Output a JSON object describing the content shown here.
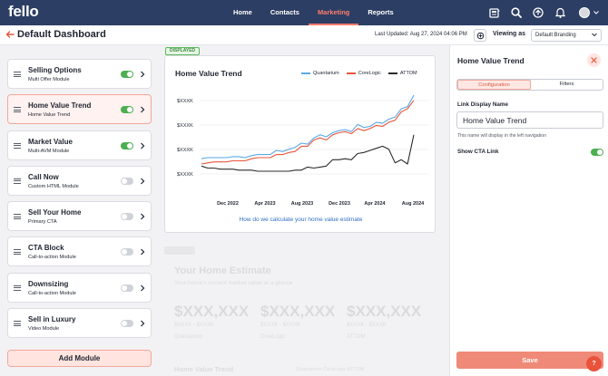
{
  "nav": {
    "logo": "fello",
    "links": [
      {
        "label": "Home",
        "active": false
      },
      {
        "label": "Contacts",
        "active": false
      },
      {
        "label": "Marketing",
        "active": true
      },
      {
        "label": "Reports",
        "active": false
      }
    ],
    "icons": [
      "newspaper-icon",
      "search-icon",
      "sync-icon",
      "bell-icon"
    ]
  },
  "header": {
    "title": "Default Dashboard",
    "last_updated": "Last Updated: Aug 27, 2024 04:06 PM",
    "viewing_label": "Viewing as",
    "branding": "Default Branding"
  },
  "modules": [
    {
      "name": "Selling Options",
      "sub": "Multi Offer Module",
      "enabled": true,
      "selected": false
    },
    {
      "name": "Home Value Trend",
      "sub": "Home Value Trend",
      "enabled": true,
      "selected": true
    },
    {
      "name": "Market Value",
      "sub": "Multi-AVM Module",
      "enabled": true,
      "selected": false
    },
    {
      "name": "Call Now",
      "sub": "Custom HTML Module",
      "enabled": false,
      "selected": false
    },
    {
      "name": "Sell Your Home",
      "sub": "Primary CTA",
      "enabled": false,
      "selected": false
    },
    {
      "name": "CTA Block",
      "sub": "Call-to-action Module",
      "enabled": false,
      "selected": false
    },
    {
      "name": "Downsizing",
      "sub": "Call-to-action Module",
      "enabled": false,
      "selected": false
    },
    {
      "name": "Sell in Luxury",
      "sub": "Video Module",
      "enabled": false,
      "selected": false
    }
  ],
  "add_module_label": "Add Module",
  "preview": {
    "displayed_tag": "DISPLAYED",
    "card_title": "Home Value Trend",
    "link_text": "How do we calculate your home value estimate"
  },
  "chart_data": {
    "type": "line",
    "title": "Home Value Trend",
    "x_ticks": [
      "Dec 2022",
      "Apr 2023",
      "Aug 2023",
      "Dec 2023",
      "Apr 2024",
      "Aug 2024"
    ],
    "y_ticks": [
      "$XXXK",
      "$XXXK",
      "$XXXK",
      "$XXXK"
    ],
    "grid": true,
    "legend_position": "top-right",
    "colors": {
      "Quantarium": "#5aa9e6",
      "CoreLogic": "#e8553c",
      "ATTOM": "#2b2b2b"
    },
    "series": [
      {
        "name": "Quantarium",
        "values": [
          0.32,
          0.33,
          0.33,
          0.33,
          0.33,
          0.34,
          0.34,
          0.33,
          0.35,
          0.36,
          0.36,
          0.36,
          0.4,
          0.39,
          0.41,
          0.43,
          0.47,
          0.46,
          0.52,
          0.55,
          0.53,
          0.57,
          0.59,
          0.6,
          0.58,
          0.65,
          0.62,
          0.63,
          0.67,
          0.66,
          0.7,
          0.72,
          0.8,
          0.82,
          0.93
        ]
      },
      {
        "name": "CoreLogic",
        "values": [
          0.27,
          0.28,
          0.29,
          0.29,
          0.29,
          0.3,
          0.3,
          0.3,
          0.32,
          0.33,
          0.33,
          0.33,
          0.36,
          0.36,
          0.38,
          0.39,
          0.44,
          0.44,
          0.5,
          0.52,
          0.5,
          0.55,
          0.57,
          0.58,
          0.56,
          0.61,
          0.59,
          0.61,
          0.64,
          0.63,
          0.67,
          0.69,
          0.77,
          0.8,
          0.88
        ]
      },
      {
        "name": "ATTOM",
        "values": [
          0.25,
          0.23,
          0.23,
          0.22,
          0.22,
          0.22,
          0.21,
          0.21,
          0.21,
          0.2,
          0.2,
          0.2,
          0.2,
          0.2,
          0.2,
          0.21,
          0.21,
          0.24,
          0.23,
          0.24,
          0.25,
          0.31,
          0.31,
          0.32,
          0.31,
          0.37,
          0.38,
          0.4,
          0.42,
          0.44,
          0.41,
          0.28,
          0.31,
          0.27,
          0.55
        ]
      }
    ]
  },
  "ghost": {
    "title": "Your Home Estimate",
    "subtitle": "Your home's current market value at a glance",
    "values": [
      {
        "value": "$XXX,XXX",
        "range": "$XXXK - $XXXK",
        "source": "Quantarium"
      },
      {
        "value": "$XXX,XXX",
        "range": "$XXXK - $XXXK",
        "source": "CoreLogic"
      },
      {
        "value": "$XXX,XXX",
        "range": "$XXXK - $XXXK",
        "source": "ATTOM"
      }
    ],
    "trend_title": "Home Value Trend",
    "legend": "Quantarium     CoreLogic     ATTOM"
  },
  "panel": {
    "title": "Home Value Trend",
    "tabs": [
      {
        "label": "Configuration",
        "active": true
      },
      {
        "label": "Filters",
        "active": false
      }
    ],
    "field_label": "Link Display Name",
    "field_value": "Home Value Trend",
    "help_text": "This name will display in the left navigation",
    "cta_label": "Show CTA Link",
    "cta_enabled": true,
    "save_label": "Save",
    "help_fab": "?"
  }
}
